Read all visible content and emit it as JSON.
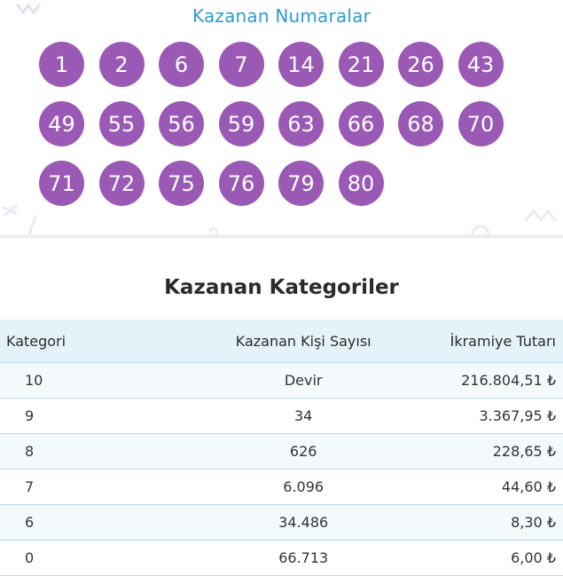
{
  "winning_numbers": {
    "title": "Kazanan Numaralar",
    "numbers": [
      "1",
      "2",
      "6",
      "7",
      "14",
      "21",
      "26",
      "43",
      "49",
      "55",
      "56",
      "59",
      "63",
      "66",
      "68",
      "70",
      "71",
      "72",
      "75",
      "76",
      "79",
      "80"
    ],
    "ball_color": "#9b59b6",
    "title_color": "#2e9bd6"
  },
  "categories": {
    "title": "Kazanan Kategoriler",
    "headers": {
      "category": "Kategori",
      "winners": "Kazanan Kişi Sayısı",
      "prize": "İkramiye Tutarı"
    },
    "rows": [
      {
        "category": "10",
        "winners": "Devir",
        "prize": "216.804,51 ₺"
      },
      {
        "category": "9",
        "winners": "34",
        "prize": "3.367,95 ₺"
      },
      {
        "category": "8",
        "winners": "626",
        "prize": "228,65 ₺"
      },
      {
        "category": "7",
        "winners": "6.096",
        "prize": "44,60 ₺"
      },
      {
        "category": "6",
        "winners": "34.486",
        "prize": "8,30 ₺"
      },
      {
        "category": "0",
        "winners": "66.713",
        "prize": "6,00 ₺"
      }
    ],
    "header_bg": "#e6f2fa",
    "row_border": "#b9d9ee"
  }
}
